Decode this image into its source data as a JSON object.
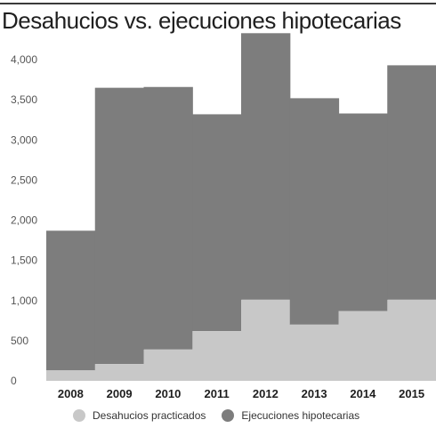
{
  "chart_data": {
    "type": "area",
    "stacked": true,
    "step": true,
    "title": "Desahucios vs. ejecuciones hipotecarias",
    "xlabel": "",
    "ylabel": "",
    "categories": [
      "2008",
      "2009",
      "2010",
      "2011",
      "2012",
      "2013",
      "2014",
      "2015"
    ],
    "series": [
      {
        "name": "Desahucios practicados",
        "values": [
          130,
          210,
          390,
          620,
          1010,
          700,
          870,
          1010
        ]
      },
      {
        "name": "Ejecuciones hipotecarias",
        "values": [
          1740,
          3440,
          3270,
          2700,
          3320,
          2820,
          2460,
          2920
        ]
      }
    ],
    "totals": [
      1870,
      3650,
      3660,
      3320,
      4330,
      3520,
      3330,
      3930
    ],
    "ylim": [
      0,
      4300
    ],
    "yticks": [
      0,
      500,
      1000,
      1500,
      2000,
      2500,
      3000,
      3500,
      4000
    ],
    "ytick_labels": [
      "0",
      "500",
      "1,000",
      "1,500",
      "2,000",
      "2,500",
      "3,000",
      "3,500",
      "4,000"
    ],
    "grid": false,
    "legend_position": "bottom",
    "colors": {
      "desahucios": "#c8c8c8",
      "ejecuciones": "#7d7d7d"
    }
  }
}
